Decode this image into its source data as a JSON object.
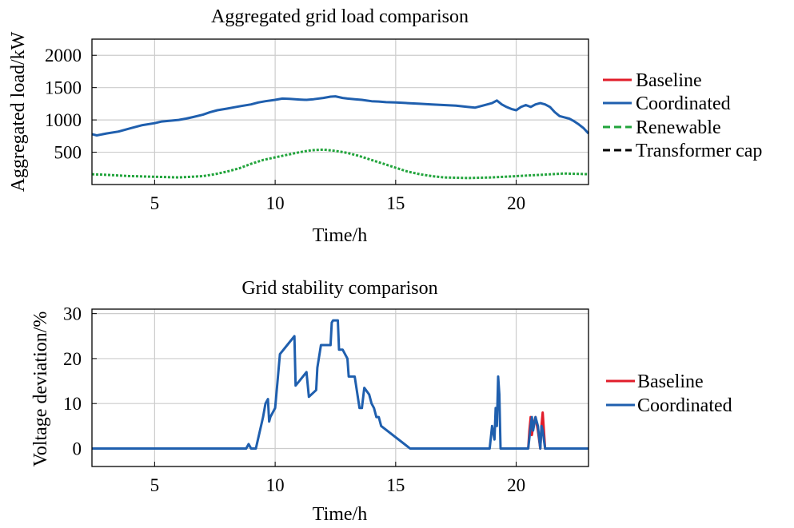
{
  "colors": {
    "baseline": "#e11d2a",
    "coordinated": "#1f5fae",
    "renewable": "#22a43c",
    "transformer": "#000000"
  },
  "chart_data": [
    {
      "type": "line",
      "title": "Aggregated grid load comparison",
      "xlabel": "Time/h",
      "ylabel": "Aggregated load/kW",
      "xlim": [
        2.4,
        23
      ],
      "ylim": [
        0,
        2250
      ],
      "xticks": [
        5,
        10,
        15,
        20
      ],
      "yticks": [
        500,
        1000,
        1500,
        2000
      ],
      "grid": true,
      "legend_position": "outside-right",
      "series": [
        {
          "name": "Baseline",
          "style": "solid",
          "x": [],
          "y": []
        },
        {
          "name": "Coordinated",
          "style": "solid",
          "x": [
            2.4,
            2.6,
            3,
            3.5,
            4,
            4.5,
            5,
            5.3,
            5.6,
            6,
            6.3,
            6.6,
            7,
            7.3,
            7.6,
            8,
            8.3,
            8.6,
            9,
            9.3,
            9.6,
            10,
            10.3,
            10.6,
            11,
            11.3,
            11.6,
            12,
            12.3,
            12.5,
            12.8,
            13,
            13.3,
            13.6,
            14,
            14.3,
            14.6,
            15,
            15.5,
            16,
            16.5,
            17,
            17.5,
            18,
            18.3,
            18.6,
            19,
            19.2,
            19.4,
            19.6,
            19.8,
            20,
            20.2,
            20.4,
            20.6,
            20.8,
            21,
            21.2,
            21.4,
            21.6,
            21.8,
            22,
            22.2,
            22.4,
            22.6,
            22.8,
            23
          ],
          "y": [
            780,
            760,
            790,
            820,
            870,
            920,
            950,
            975,
            985,
            1000,
            1020,
            1045,
            1080,
            1120,
            1150,
            1175,
            1195,
            1215,
            1240,
            1270,
            1290,
            1310,
            1330,
            1325,
            1315,
            1310,
            1320,
            1340,
            1360,
            1365,
            1340,
            1330,
            1320,
            1310,
            1290,
            1285,
            1275,
            1270,
            1260,
            1250,
            1240,
            1230,
            1220,
            1200,
            1190,
            1220,
            1260,
            1300,
            1240,
            1200,
            1170,
            1150,
            1200,
            1230,
            1200,
            1240,
            1260,
            1240,
            1200,
            1120,
            1060,
            1040,
            1020,
            980,
            930,
            870,
            790
          ]
        },
        {
          "name": "Renewable",
          "style": "dashed",
          "x": [
            2.4,
            3,
            4,
            5,
            6,
            7,
            7.5,
            8,
            8.5,
            9,
            9.5,
            10,
            10.5,
            11,
            11.5,
            12,
            12.5,
            13,
            13.5,
            14,
            14.5,
            15,
            15.5,
            16,
            16.5,
            17,
            18,
            19,
            20,
            21,
            22,
            23
          ],
          "y": [
            160,
            150,
            130,
            120,
            110,
            130,
            160,
            200,
            250,
            320,
            380,
            420,
            460,
            500,
            530,
            540,
            520,
            490,
            440,
            380,
            320,
            260,
            200,
            160,
            130,
            110,
            100,
            110,
            130,
            150,
            170,
            160
          ]
        },
        {
          "name": "Transformer cap",
          "style": "dashed",
          "x": [],
          "y": []
        }
      ]
    },
    {
      "type": "line",
      "title": "Grid stability comparison",
      "xlabel": "Time/h",
      "ylabel": "Voltage deviation/%",
      "xlim": [
        2.4,
        23
      ],
      "ylim": [
        -4,
        31
      ],
      "xticks": [
        5,
        10,
        15,
        20
      ],
      "yticks": [
        0,
        10,
        20,
        30
      ],
      "grid": true,
      "legend_position": "outside-right",
      "series": [
        {
          "name": "Baseline",
          "style": "solid",
          "x": [
            20.5,
            20.55,
            20.6,
            20.65,
            20.7,
            20.8,
            20.9,
            21.0,
            21.05,
            21.1,
            21.15,
            21.2,
            21.3
          ],
          "y": [
            0,
            4,
            7,
            3,
            5,
            7,
            4,
            0,
            5,
            8,
            4,
            0,
            0
          ]
        },
        {
          "name": "Coordinated",
          "style": "solid",
          "x": [
            2.4,
            8.8,
            8.9,
            9.0,
            9.2,
            9.5,
            9.6,
            9.7,
            9.75,
            9.8,
            10.0,
            10.1,
            10.2,
            10.5,
            10.8,
            10.85,
            11.0,
            11.3,
            11.4,
            11.7,
            11.75,
            11.9,
            12.1,
            12.3,
            12.35,
            12.4,
            12.6,
            12.65,
            12.8,
            13.0,
            13.05,
            13.3,
            13.5,
            13.6,
            13.7,
            13.9,
            14.0,
            14.1,
            14.2,
            14.3,
            14.4,
            15.6,
            18.9,
            19.0,
            19.1,
            19.15,
            19.2,
            19.25,
            19.3,
            19.35,
            19.5,
            20.5,
            20.6,
            20.65,
            20.7,
            20.8,
            20.9,
            21.0,
            21.05,
            21.1,
            21.15,
            21.2,
            23
          ],
          "y": [
            0,
            0,
            1,
            0,
            0,
            7,
            10,
            11,
            6,
            7,
            9,
            15,
            21,
            23,
            25,
            14,
            15,
            17,
            11.5,
            13,
            18,
            23,
            23,
            23,
            28,
            28.5,
            28.5,
            22,
            22,
            20,
            16,
            16,
            9,
            9,
            13.5,
            12,
            10,
            9,
            7,
            7,
            5,
            0,
            0,
            5,
            2,
            9,
            5,
            16,
            12,
            0,
            0,
            0,
            5,
            7,
            4,
            7,
            5,
            0,
            5,
            4,
            2,
            0,
            0
          ]
        }
      ]
    }
  ]
}
